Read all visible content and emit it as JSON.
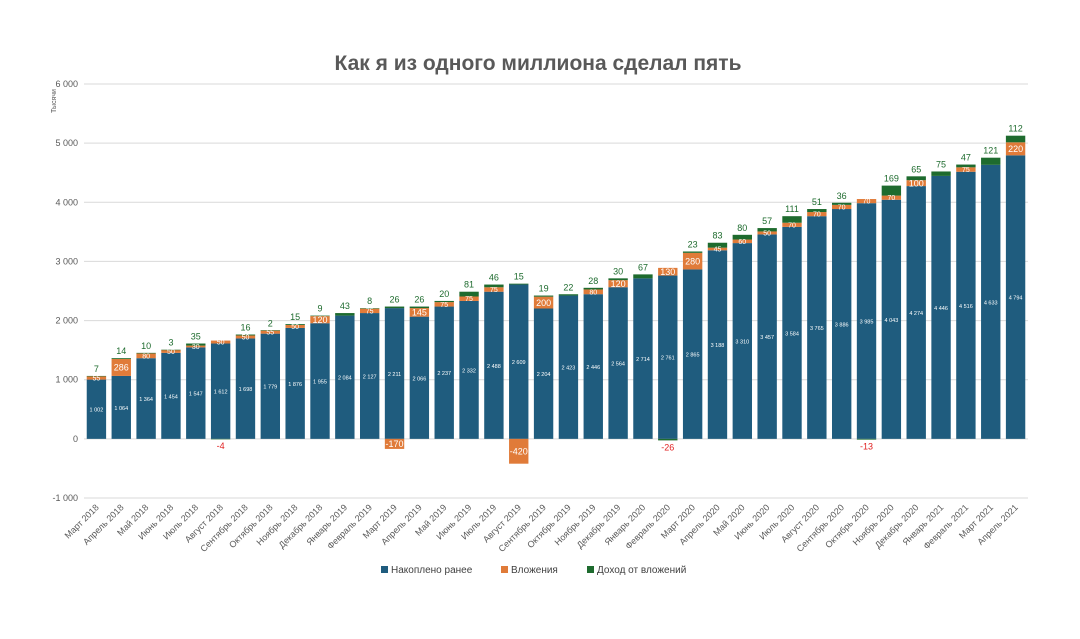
{
  "chart_data": {
    "type": "bar",
    "stacked": true,
    "title": "Как я из одного миллиона сделал пять",
    "ylabel": "Тысячи",
    "xlabel": "",
    "ylim": [
      -1000,
      6000
    ],
    "yticks": [
      -1000,
      0,
      1000,
      2000,
      3000,
      4000,
      5000,
      6000
    ],
    "ytick_labels": [
      "-1 000",
      "0",
      "1 000",
      "2 000",
      "3 000",
      "4 000",
      "5 000",
      "6 000"
    ],
    "grid": true,
    "legend_position": "bottom",
    "categories": [
      "Март 2018",
      "Апрель 2018",
      "Май 2018",
      "Июнь 2018",
      "Июль 2018",
      "Август 2018",
      "Сентябрь 2018",
      "Октябрь 2018",
      "Ноябрь 2018",
      "Декабрь 2018",
      "Январь 2019",
      "Февраль 2019",
      "Март 2019",
      "Апрель 2019",
      "Май 2019",
      "Июнь 2019",
      "Июль 2019",
      "Август 2019",
      "Сентябрь 2019",
      "Октябрь 2019",
      "Ноябрь 2019",
      "Декабрь 2019",
      "Январь 2020",
      "Февраль 2020",
      "Март 2020",
      "Апрель 2020",
      "Май 2020",
      "Июнь 2020",
      "Июль 2020",
      "Август 2020",
      "Сентябрь 2020",
      "Октябрь 2020",
      "Ноябрь 2020",
      "Декабрь 2020",
      "Январь 2021",
      "Февраль 2021",
      "Март 2021",
      "Апрель 2021"
    ],
    "series": [
      {
        "name": "Накоплено ранее",
        "color": "#1F5C7E",
        "values": [
          1002,
          1064,
          1364,
          1454,
          1547,
          1612,
          1698,
          1779,
          1876,
          1955,
          2084,
          2127,
          2211,
          2066,
          2237,
          2332,
          2488,
          2609,
          2204,
          2423,
          2446,
          2564,
          2714,
          2761,
          2865,
          3188,
          3310,
          3457,
          3584,
          3765,
          3886,
          3985,
          4043,
          4274,
          4446,
          4516,
          4633,
          4794
        ],
        "labels": [
          "1 002",
          "1 064",
          "1 364",
          "1 454",
          "1 547",
          "1 612",
          "1 698",
          "1 779",
          "1 876",
          "1 955",
          "2 084",
          "2 127",
          "2 211",
          "2 066",
          "2 237",
          "2 332",
          "2 488",
          "2 609",
          "2 204",
          "2 423",
          "2 446",
          "2 564",
          "2 714",
          "2 761",
          "2 865",
          "3 188",
          "3 310",
          "3 457",
          "3 584",
          "3 765",
          "3 886",
          "3 985",
          "4 043",
          "4 274",
          "4 446",
          "4 516",
          "4 633",
          "4 794"
        ]
      },
      {
        "name": "Вложения",
        "color": "#E07B39",
        "values": [
          55,
          286,
          80,
          50,
          30,
          50,
          50,
          55,
          50,
          120,
          0,
          75,
          -170,
          145,
          75,
          75,
          75,
          -420,
          200,
          0,
          80,
          120,
          0,
          130,
          280,
          45,
          60,
          50,
          70,
          70,
          70,
          70,
          70,
          100,
          0,
          75,
          0,
          220
        ],
        "labels": [
          "55",
          "286",
          "80",
          "50",
          "30",
          "50",
          "50",
          "55",
          "50",
          "120",
          "",
          "75",
          "-170",
          "145",
          "75",
          "75",
          "75",
          "-420",
          "200",
          "",
          "80",
          "120",
          "",
          "130",
          "280",
          "45",
          "60",
          "50",
          "70",
          "70",
          "70",
          "70",
          "70",
          "100",
          "",
          "75",
          "",
          "220"
        ]
      },
      {
        "name": "Доход от вложений",
        "color": "#1E6B2E",
        "values": [
          7,
          14,
          10,
          3,
          35,
          -4,
          16,
          2,
          15,
          9,
          43,
          8,
          26,
          26,
          20,
          81,
          46,
          15,
          19,
          22,
          28,
          30,
          67,
          -26,
          23,
          83,
          80,
          57,
          111,
          51,
          36,
          -13,
          169,
          65,
          75,
          47,
          121,
          112
        ],
        "labels": [
          "7",
          "14",
          "10",
          "3",
          "35",
          "-4",
          "16",
          "2",
          "15",
          "9",
          "43",
          "8",
          "26",
          "26",
          "20",
          "81",
          "46",
          "15",
          "19",
          "22",
          "28",
          "30",
          "67",
          "-26",
          "23",
          "83",
          "80",
          "57",
          "111",
          "51",
          "36",
          "-13",
          "169",
          "65",
          "75",
          "47",
          "121",
          "112"
        ]
      }
    ]
  }
}
